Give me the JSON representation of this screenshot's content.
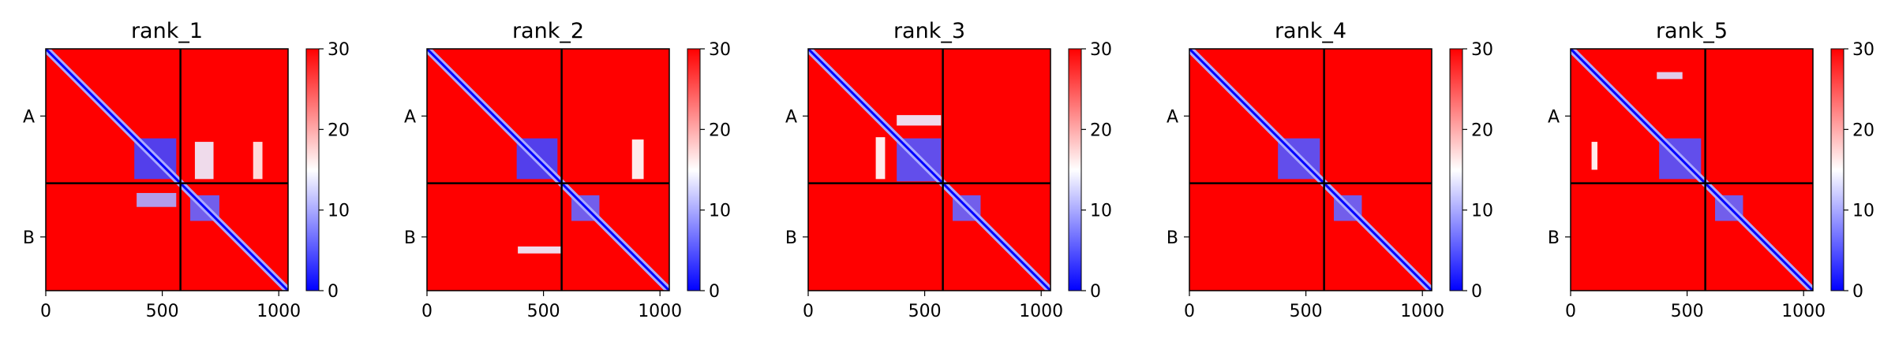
{
  "figure": {
    "colorbar_ticks": [
      "0",
      "10",
      "20",
      "30"
    ],
    "x_ticks": [
      "0",
      "500",
      "1000"
    ],
    "chain_labels": [
      "A",
      "B"
    ]
  },
  "chart_data": [
    {
      "type": "heatmap",
      "title": "rank_1",
      "xlim": [
        0,
        1040
      ],
      "ylim": [
        1040,
        0
      ],
      "x_ticks": [
        0,
        500,
        1000
      ],
      "chain_boundary": 578,
      "chains": [
        "A",
        "B"
      ],
      "color_range": [
        0,
        30
      ],
      "colorbar_ticks": [
        0,
        10,
        20,
        30
      ],
      "colormap": [
        "#0000ff",
        "#ffffff",
        "#ff0000"
      ],
      "low_value_regions": [
        {
          "x": [
            380,
            560
          ],
          "y": [
            385,
            560
          ],
          "value": 4
        },
        {
          "x": [
            620,
            745
          ],
          "y": [
            630,
            740
          ],
          "value": 6
        },
        {
          "x": [
            390,
            560
          ],
          "y": [
            620,
            680
          ],
          "value": 10
        },
        {
          "x": [
            640,
            720
          ],
          "y": [
            400,
            560
          ],
          "value": 14
        },
        {
          "x": [
            890,
            930
          ],
          "y": [
            400,
            560
          ],
          "value": 16
        }
      ]
    },
    {
      "type": "heatmap",
      "title": "rank_2",
      "xlim": [
        0,
        1040
      ],
      "ylim": [
        1040,
        0
      ],
      "x_ticks": [
        0,
        500,
        1000
      ],
      "chain_boundary": 578,
      "chains": [
        "A",
        "B"
      ],
      "color_range": [
        0,
        30
      ],
      "colorbar_ticks": [
        0,
        10,
        20,
        30
      ],
      "colormap": [
        "#0000ff",
        "#ffffff",
        "#ff0000"
      ],
      "low_value_regions": [
        {
          "x": [
            385,
            560
          ],
          "y": [
            385,
            560
          ],
          "value": 4
        },
        {
          "x": [
            620,
            740
          ],
          "y": [
            630,
            740
          ],
          "value": 6
        },
        {
          "x": [
            880,
            930
          ],
          "y": [
            390,
            560
          ],
          "value": 15
        },
        {
          "x": [
            390,
            580
          ],
          "y": [
            850,
            880
          ],
          "value": 14
        }
      ]
    },
    {
      "type": "heatmap",
      "title": "rank_3",
      "xlim": [
        0,
        1040
      ],
      "ylim": [
        1040,
        0
      ],
      "x_ticks": [
        0,
        500,
        1000
      ],
      "chain_boundary": 578,
      "chains": [
        "A",
        "B"
      ],
      "color_range": [
        0,
        30
      ],
      "colorbar_ticks": [
        0,
        10,
        20,
        30
      ],
      "colormap": [
        "#0000ff",
        "#ffffff",
        "#ff0000"
      ],
      "low_value_regions": [
        {
          "x": [
            380,
            570
          ],
          "y": [
            385,
            570
          ],
          "value": 5
        },
        {
          "x": [
            620,
            740
          ],
          "y": [
            630,
            740
          ],
          "value": 6
        },
        {
          "x": [
            380,
            570
          ],
          "y": [
            285,
            330
          ],
          "value": 14
        },
        {
          "x": [
            290,
            330
          ],
          "y": [
            380,
            560
          ],
          "value": 15
        }
      ]
    },
    {
      "type": "heatmap",
      "title": "rank_4",
      "xlim": [
        0,
        1040
      ],
      "ylim": [
        1040,
        0
      ],
      "x_ticks": [
        0,
        500,
        1000
      ],
      "chain_boundary": 578,
      "chains": [
        "A",
        "B"
      ],
      "color_range": [
        0,
        30
      ],
      "colorbar_ticks": [
        0,
        10,
        20,
        30
      ],
      "colormap": [
        "#0000ff",
        "#ffffff",
        "#ff0000"
      ],
      "low_value_regions": [
        {
          "x": [
            380,
            560
          ],
          "y": [
            385,
            560
          ],
          "value": 5
        },
        {
          "x": [
            620,
            740
          ],
          "y": [
            630,
            740
          ],
          "value": 6
        }
      ]
    },
    {
      "type": "heatmap",
      "title": "rank_5",
      "xlim": [
        0,
        1040
      ],
      "ylim": [
        1040,
        0
      ],
      "x_ticks": [
        0,
        500,
        1000
      ],
      "chain_boundary": 578,
      "chains": [
        "A",
        "B"
      ],
      "color_range": [
        0,
        30
      ],
      "colorbar_ticks": [
        0,
        10,
        20,
        30
      ],
      "colormap": [
        "#0000ff",
        "#ffffff",
        "#ff0000"
      ],
      "low_value_regions": [
        {
          "x": [
            380,
            560
          ],
          "y": [
            385,
            560
          ],
          "value": 5
        },
        {
          "x": [
            620,
            740
          ],
          "y": [
            630,
            740
          ],
          "value": 6
        },
        {
          "x": [
            370,
            480
          ],
          "y": [
            100,
            130
          ],
          "value": 13
        },
        {
          "x": [
            90,
            115
          ],
          "y": [
            400,
            520
          ],
          "value": 15
        }
      ]
    }
  ]
}
